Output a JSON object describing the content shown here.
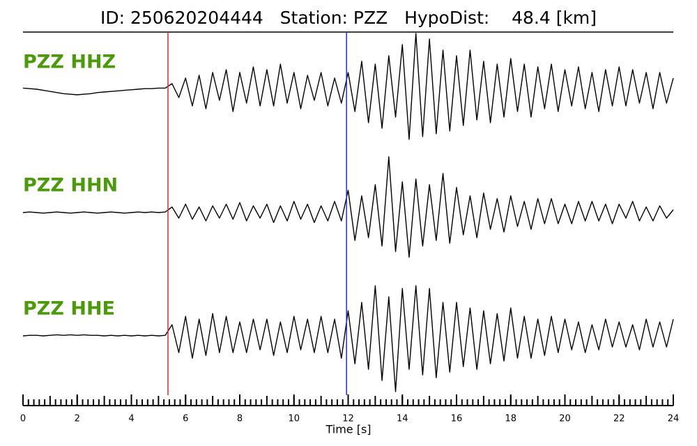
{
  "chart_data": {
    "type": "line",
    "title": "ID: 250620204444   Station: PZZ   HypoDist:    48.4 [km]",
    "xlabel": "Time [s]",
    "xlim": [
      0,
      24
    ],
    "ylim": [
      -1,
      1
    ],
    "xticks": [
      0,
      2,
      4,
      6,
      8,
      10,
      12,
      14,
      16,
      18,
      20,
      22,
      24
    ],
    "minor_xticks": [
      0,
      0.2,
      0.4,
      0.6,
      0.8,
      1,
      1.2,
      1.4,
      1.6,
      1.8,
      2,
      2.2,
      2.4,
      2.6,
      2.8,
      3,
      3.2,
      3.4,
      3.6,
      3.8,
      4,
      4.2,
      4.4,
      4.6,
      4.8,
      5,
      5.2,
      5.4,
      5.6,
      5.8,
      6,
      6.2,
      6.4,
      6.6,
      6.8,
      7,
      7.2,
      7.4,
      7.6,
      7.8,
      8,
      8.2,
      8.4,
      8.6,
      8.8,
      9,
      9.2,
      9.4,
      9.6,
      9.8,
      10,
      10.2,
      10.4,
      10.6,
      10.8,
      11,
      11.2,
      11.4,
      11.6,
      11.8,
      12,
      12.2,
      12.4,
      12.6,
      12.8,
      13,
      13.2,
      13.4,
      13.6,
      13.8,
      14,
      14.2,
      14.4,
      14.6,
      14.8,
      15,
      15.2,
      15.4,
      15.6,
      15.8,
      16,
      16.2,
      16.4,
      16.6,
      16.8,
      17,
      17.2,
      17.4,
      17.6,
      17.8,
      18,
      18.2,
      18.4,
      18.6,
      18.8,
      19,
      19.2,
      19.4,
      19.6,
      19.8,
      20,
      20.2,
      20.4,
      20.6,
      20.8,
      21,
      21.2,
      21.4,
      21.6,
      21.8,
      22,
      22.2,
      22.4,
      22.6,
      22.8,
      23,
      23.2,
      23.4,
      23.6,
      23.8,
      24
    ],
    "label_color": "#4a9a0a",
    "markers": [
      {
        "x": 5.35,
        "color": "#e8262a"
      },
      {
        "x": 11.94,
        "color": "#2a2ad8"
      }
    ],
    "x": [
      0,
      0.25,
      0.5,
      0.75,
      1,
      1.25,
      1.5,
      1.75,
      2,
      2.25,
      2.5,
      2.75,
      3,
      3.25,
      3.5,
      3.75,
      4,
      4.25,
      4.5,
      4.75,
      5,
      5.25,
      5.5,
      5.75,
      6,
      6.25,
      6.5,
      6.75,
      7,
      7.25,
      7.5,
      7.75,
      8,
      8.25,
      8.5,
      8.75,
      9,
      9.25,
      9.5,
      9.75,
      10,
      10.25,
      10.5,
      10.75,
      11,
      11.25,
      11.5,
      11.75,
      12,
      12.25,
      12.5,
      12.75,
      13,
      13.25,
      13.5,
      13.75,
      14,
      14.25,
      14.5,
      14.75,
      15,
      15.25,
      15.5,
      15.75,
      16,
      16.25,
      16.5,
      16.75,
      17,
      17.25,
      17.5,
      17.75,
      18,
      18.25,
      18.5,
      18.75,
      19,
      19.25,
      19.5,
      19.75,
      20,
      20.25,
      20.5,
      20.75,
      21,
      21.25,
      21.5,
      21.75,
      22,
      22.25,
      22.5,
      22.75,
      23,
      23.25,
      23.5,
      23.75,
      24
    ],
    "series": [
      {
        "name": "PZZ HHZ",
        "color": "#000000",
        "values": [
          0.02,
          0.01,
          0,
          -0.02,
          -0.04,
          -0.06,
          -0.08,
          -0.09,
          -0.1,
          -0.09,
          -0.08,
          -0.06,
          -0.05,
          -0.04,
          -0.03,
          -0.02,
          -0.01,
          0,
          0.01,
          0.01,
          0.02,
          0.02,
          0.1,
          -0.15,
          0.2,
          -0.3,
          0.25,
          -0.35,
          0.3,
          -0.2,
          0.35,
          -0.4,
          0.3,
          -0.25,
          0.4,
          -0.3,
          0.35,
          -0.3,
          0.45,
          -0.25,
          0.3,
          -0.35,
          0.25,
          -0.2,
          0.3,
          -0.3,
          0.2,
          -0.25,
          0.3,
          -0.4,
          0.5,
          -0.6,
          0.45,
          -0.7,
          0.6,
          -0.5,
          0.8,
          -0.9,
          1.0,
          -0.85,
          0.9,
          -0.8,
          0.7,
          -0.75,
          0.6,
          -0.65,
          0.7,
          -0.55,
          0.5,
          -0.6,
          0.45,
          -0.5,
          0.55,
          -0.4,
          0.45,
          -0.5,
          0.4,
          -0.35,
          0.45,
          -0.4,
          0.35,
          -0.3,
          0.4,
          -0.35,
          0.3,
          -0.4,
          0.35,
          -0.3,
          0.4,
          -0.3,
          0.35,
          -0.25,
          0.3,
          -0.35,
          0.3,
          -0.25,
          0.2
        ]
      },
      {
        "name": "PZZ HHN",
        "color": "#000000",
        "values": [
          0,
          0.01,
          0,
          -0.01,
          0,
          0.01,
          0,
          -0.01,
          0,
          0.01,
          0,
          -0.01,
          0,
          0.01,
          0,
          -0.01,
          0,
          0.01,
          0,
          0.01,
          0,
          0.01,
          0.1,
          -0.1,
          0.15,
          -0.12,
          0.1,
          -0.15,
          0.12,
          -0.1,
          0.15,
          -0.12,
          0.18,
          -0.15,
          0.12,
          -0.1,
          0.15,
          -0.18,
          0.12,
          -0.15,
          0.2,
          -0.12,
          0.15,
          -0.18,
          0.12,
          -0.15,
          0.2,
          -0.15,
          0.4,
          -0.5,
          0.3,
          -0.45,
          0.5,
          -0.6,
          1.0,
          -0.7,
          0.55,
          -0.8,
          0.6,
          -0.6,
          0.5,
          -0.5,
          0.7,
          -0.55,
          0.45,
          -0.4,
          0.3,
          -0.45,
          0.35,
          -0.3,
          0.25,
          -0.35,
          0.3,
          -0.25,
          0.2,
          -0.3,
          0.25,
          -0.2,
          0.25,
          -0.2,
          0.15,
          -0.2,
          0.2,
          -0.15,
          0.2,
          -0.15,
          0.15,
          -0.2,
          0.15,
          -0.1,
          0.2,
          -0.15,
          0.1,
          -0.15,
          0.12,
          -0.1,
          0.05
        ]
      },
      {
        "name": "PZZ HHE",
        "color": "#000000",
        "values": [
          0,
          0.01,
          0.01,
          0,
          0.01,
          0.02,
          0.01,
          0.02,
          0.01,
          0.02,
          0.01,
          0.01,
          0,
          0.01,
          0,
          0.01,
          0,
          0.01,
          0,
          0.01,
          0,
          0.01,
          0.2,
          -0.3,
          0.35,
          -0.4,
          0.3,
          -0.35,
          0.4,
          -0.3,
          0.35,
          -0.3,
          0.25,
          -0.3,
          0.3,
          -0.25,
          0.3,
          -0.35,
          0.25,
          -0.3,
          0.35,
          -0.25,
          0.3,
          -0.3,
          0.35,
          -0.3,
          0.3,
          -0.4,
          0.45,
          -0.5,
          0.6,
          -0.6,
          0.9,
          -0.8,
          0.7,
          -1.0,
          0.85,
          -0.6,
          0.9,
          -0.7,
          0.85,
          -0.75,
          0.6,
          -0.65,
          0.6,
          -0.55,
          0.5,
          -0.6,
          0.45,
          -0.5,
          0.4,
          -0.45,
          0.5,
          -0.4,
          0.35,
          -0.4,
          0.3,
          -0.35,
          0.35,
          -0.3,
          0.3,
          -0.25,
          0.25,
          -0.3,
          0.2,
          -0.25,
          0.3,
          -0.2,
          0.25,
          -0.2,
          0.2,
          -0.25,
          0.3,
          -0.2,
          0.25,
          -0.2,
          0.3
        ]
      }
    ]
  }
}
